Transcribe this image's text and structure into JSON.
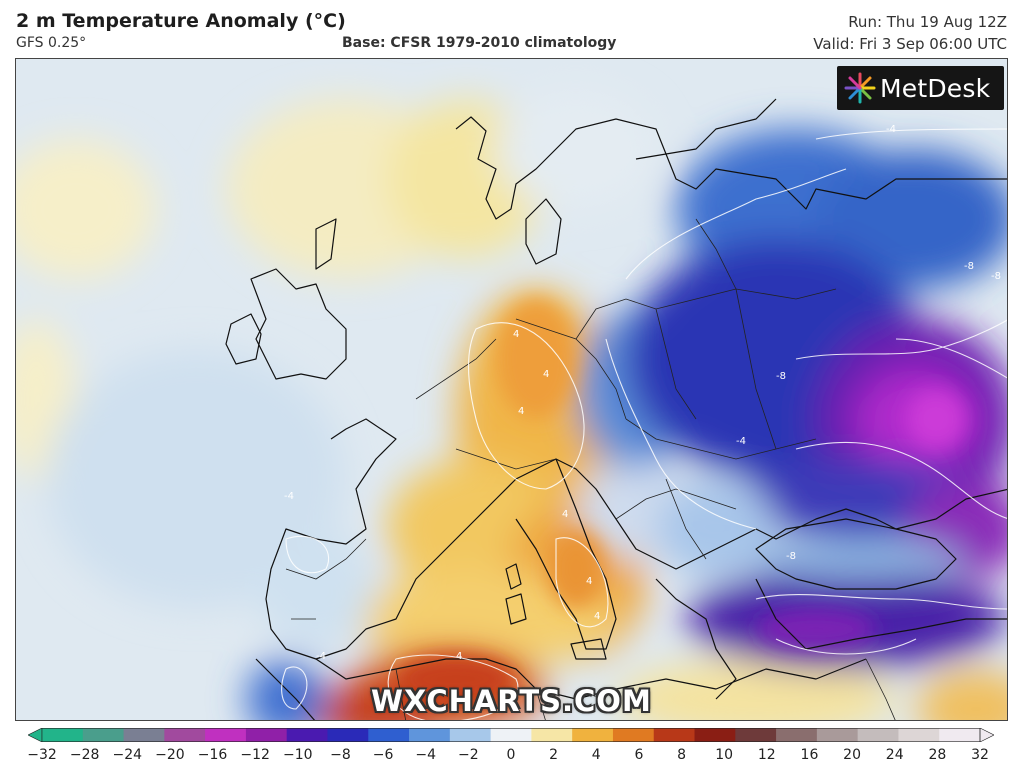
{
  "header": {
    "title": "2 m Temperature Anomaly (°C)",
    "model": "GFS 0.25°",
    "base": "Base: CFSR 1979-2010 climatology",
    "run": "Run: Thu 19 Aug 12Z",
    "valid": "Valid: Fri 3 Sep 06:00 UTC"
  },
  "logo": {
    "text": "MetDesk",
    "icon": "metdesk-burst-icon"
  },
  "watermark": "WXCHARTS.COM",
  "colorbar": {
    "ticks": [
      "−32",
      "−28",
      "−24",
      "−20",
      "−16",
      "−12",
      "−10",
      "−8",
      "−6",
      "−4",
      "−2",
      "0",
      "2",
      "4",
      "6",
      "8",
      "10",
      "12",
      "16",
      "20",
      "24",
      "28",
      "32"
    ],
    "colors": [
      "#22b48a",
      "#4a9e8c",
      "#7a7f93",
      "#a14a9e",
      "#c030c0",
      "#9020a8",
      "#4a1ab0",
      "#2a2ab8",
      "#2f5fd0",
      "#5f95dc",
      "#a7c8ea",
      "#eef2f6",
      "#f6e6a6",
      "#f0b23e",
      "#e07a22",
      "#b83818",
      "#8a1e14",
      "#6e3a3a",
      "#8a6e6e",
      "#a99a9a",
      "#c4bcbc",
      "#ddd6d6",
      "#f0eaf0"
    ]
  },
  "map": {
    "contour_labels": [
      "4",
      "4",
      "4",
      "4",
      "4",
      "4",
      "4",
      "-4",
      "-4",
      "-4",
      "-4",
      "-8",
      "-8",
      "-8",
      "-8"
    ]
  }
}
